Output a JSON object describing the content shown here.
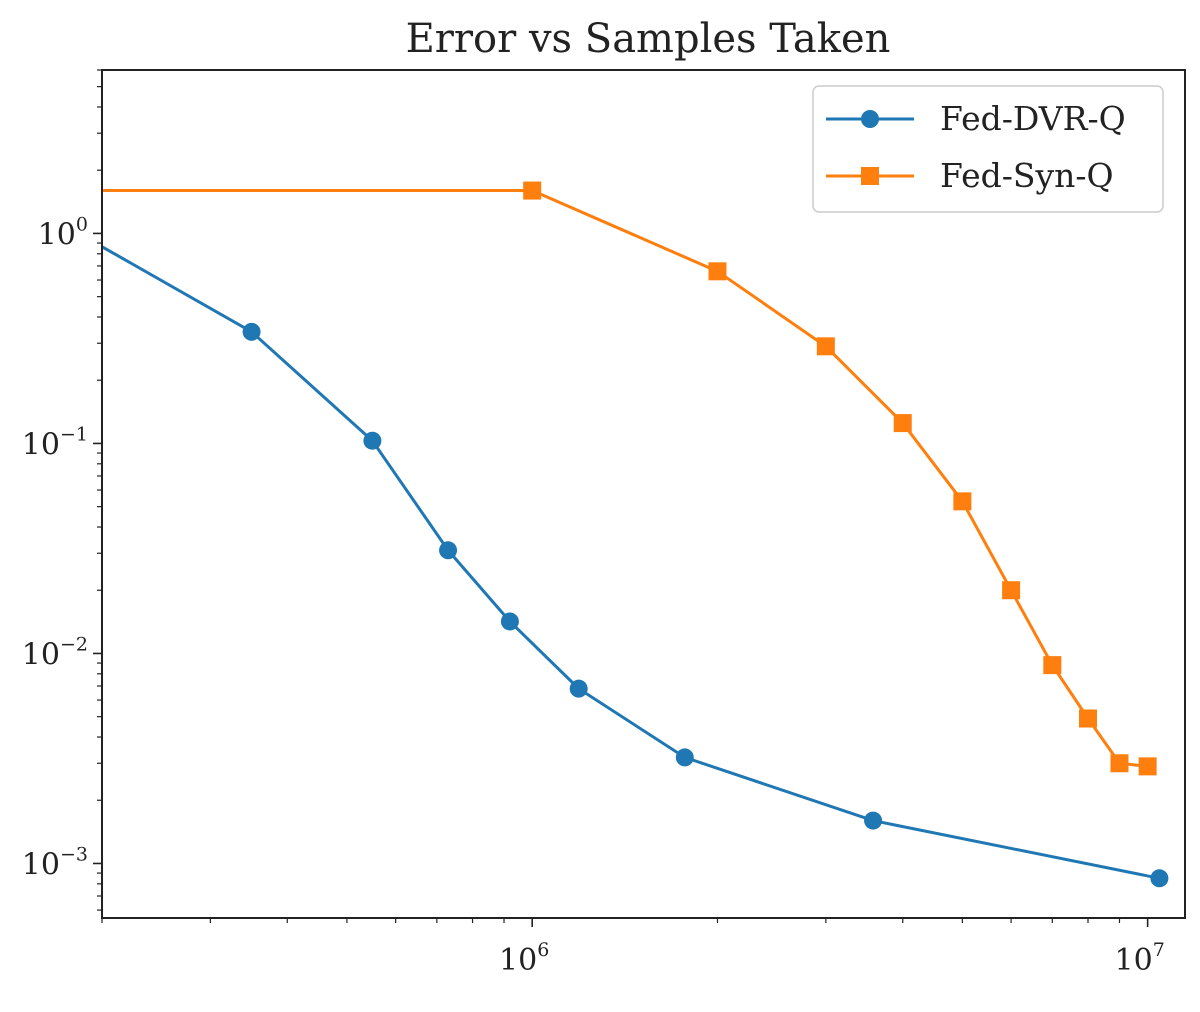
{
  "chart_data": {
    "type": "line",
    "title": "Error vs Samples Taken",
    "xlabel": "",
    "ylabel": "",
    "x_scale": "log",
    "y_scale": "log",
    "xlim": [
      200000,
      11500000
    ],
    "ylim": [
      0.00055,
      6
    ],
    "x_ticks": [
      {
        "value": 1000000,
        "base": "10",
        "exp": "6"
      },
      {
        "value": 10000000,
        "base": "10",
        "exp": "7"
      }
    ],
    "y_ticks": [
      {
        "value": 1,
        "base": "10",
        "exp": "0"
      },
      {
        "value": 0.1,
        "base": "10",
        "exp": "−1"
      },
      {
        "value": 0.01,
        "base": "10",
        "exp": "−2"
      },
      {
        "value": 0.001,
        "base": "10",
        "exp": "−3"
      }
    ],
    "grid": false,
    "legend_position": "top-right",
    "series": [
      {
        "name": "Fed-DVR-Q",
        "color": "#1f77b4",
        "marker": "circle",
        "x": [
          175000,
          350000,
          550000,
          730000,
          920000,
          1190000,
          1770000,
          3580000,
          10450000
        ],
        "y": [
          1.08,
          0.34,
          0.103,
          0.031,
          0.0142,
          0.0068,
          0.0032,
          0.0016,
          0.00085
        ]
      },
      {
        "name": "Fed-Syn-Q",
        "color": "#ff7f0e",
        "marker": "square",
        "x": [
          200000,
          1000000,
          2000000,
          3000000,
          4000000,
          5000000,
          6000000,
          7000000,
          8000000,
          9000000,
          10000000
        ],
        "y": [
          1.6,
          1.6,
          0.66,
          0.29,
          0.125,
          0.053,
          0.02,
          0.0088,
          0.0049,
          0.003,
          0.0029
        ]
      }
    ]
  }
}
